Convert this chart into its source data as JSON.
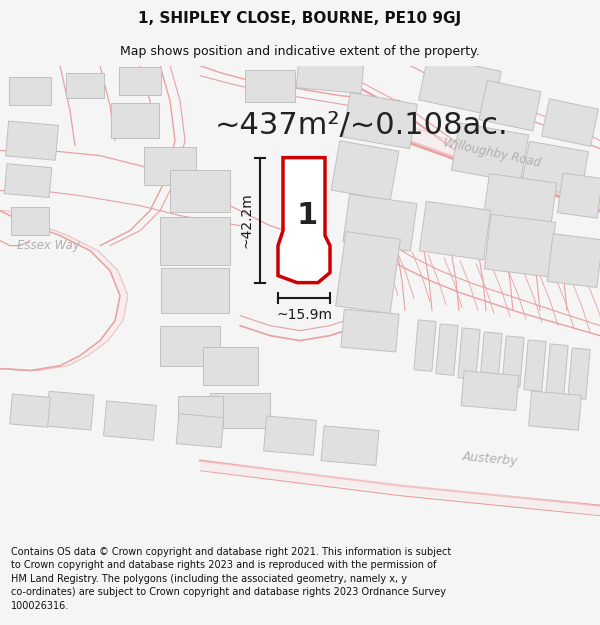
{
  "title_line1": "1, SHIPLEY CLOSE, BOURNE, PE10 9GJ",
  "title_line2": "Map shows position and indicative extent of the property.",
  "area_text": "~437m²/~0.108ac.",
  "dim_height": "~42.2m",
  "dim_width": "~15.9m",
  "plot_label": "1",
  "footer_lines": [
    "Contains OS data © Crown copyright and database right 2021. This information is subject",
    "to Crown copyright and database rights 2023 and is reproduced with the permission of",
    "HM Land Registry. The polygons (including the associated geometry, namely x, y",
    "co-ordinates) are subject to Crown copyright and database rights 2023 Ordnance Survey",
    "100026316."
  ],
  "bg_color": "#f5f5f5",
  "map_bg": "#ffffff",
  "plot_fill": "#ffffff",
  "plot_edge": "#cc0000",
  "road_line_color": "#e8a0a0",
  "road_fill_color": "#f8e8e8",
  "building_color": "#e0e0e0",
  "building_edge": "#c0c0c0",
  "dim_color": "#1a1a1a",
  "label_color": "#222222",
  "street_label_color": "#b0b0b0",
  "title_fontsize": 11,
  "subtitle_fontsize": 9,
  "area_fontsize": 22,
  "dim_fontsize": 10,
  "plot_label_fontsize": 22,
  "footer_fontsize": 7
}
